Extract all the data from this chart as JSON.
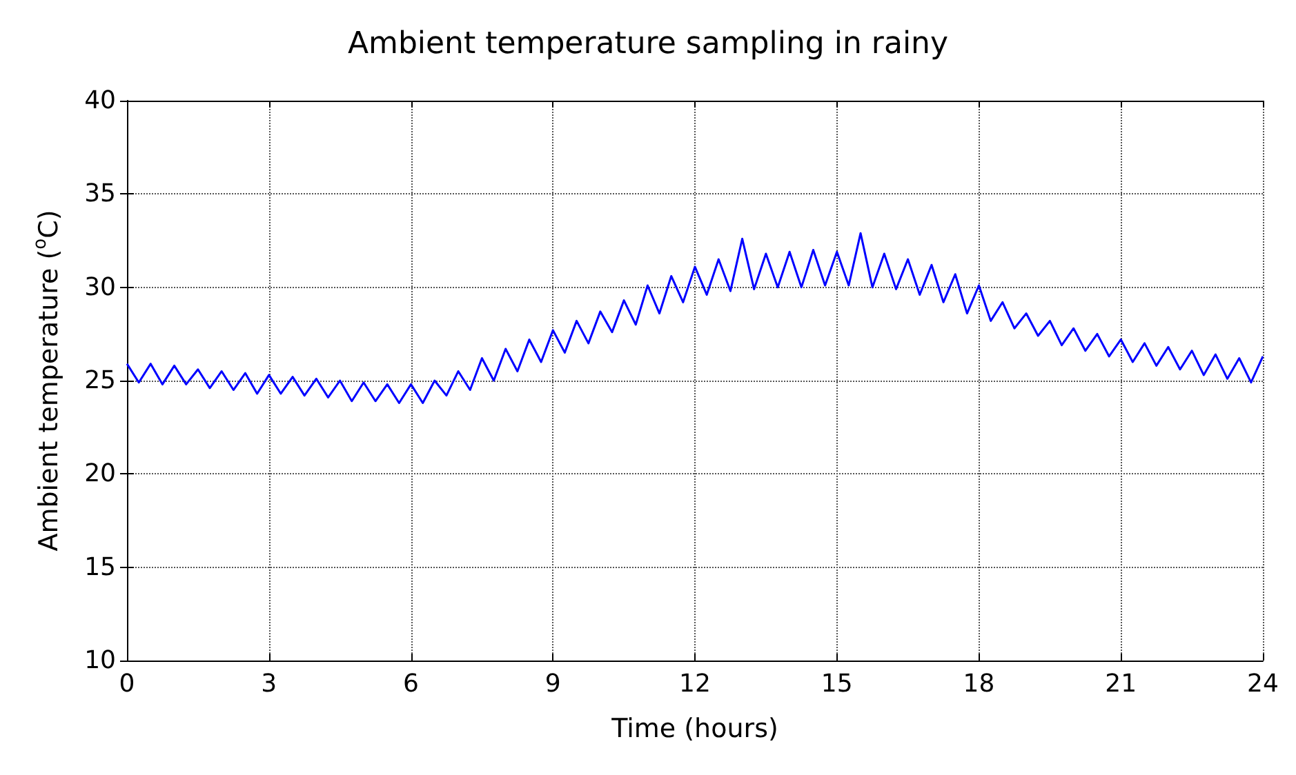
{
  "chart_data": {
    "type": "line",
    "title": "Ambient temperature sampling in rainy",
    "xlabel": "Time (hours)",
    "ylabel": "Ambient temperature ($^{o}$C)",
    "x": [
      0,
      0.25,
      0.5,
      0.75,
      1,
      1.25,
      1.5,
      1.75,
      2,
      2.25,
      2.5,
      2.75,
      3,
      3.25,
      3.5,
      3.75,
      4,
      4.25,
      4.5,
      4.75,
      5,
      5.25,
      5.5,
      5.75,
      6,
      6.25,
      6.5,
      6.75,
      7,
      7.25,
      7.5,
      7.75,
      8,
      8.25,
      8.5,
      8.75,
      9,
      9.25,
      9.5,
      9.75,
      10,
      10.25,
      10.5,
      10.75,
      11,
      11.25,
      11.5,
      11.75,
      12,
      12.25,
      12.5,
      12.75,
      13,
      13.25,
      13.5,
      13.75,
      14,
      14.25,
      14.5,
      14.75,
      15,
      15.25,
      15.5,
      15.75,
      16,
      16.25,
      16.5,
      16.75,
      17,
      17.25,
      17.5,
      17.75,
      18,
      18.25,
      18.5,
      18.75,
      19,
      19.25,
      19.5,
      19.75,
      20,
      20.25,
      20.5,
      20.75,
      21,
      21.25,
      21.5,
      21.75,
      22,
      22.25,
      22.5,
      22.75,
      23,
      23.25,
      23.5,
      23.75,
      24
    ],
    "series": [
      {
        "color": "#0000ff",
        "values": [
          25.9,
          24.9,
          25.9,
          24.8,
          25.8,
          24.8,
          25.6,
          24.6,
          25.5,
          24.5,
          25.4,
          24.3,
          25.3,
          24.3,
          25.2,
          24.2,
          25.1,
          24.1,
          25.0,
          23.9,
          24.9,
          23.9,
          24.8,
          23.8,
          24.8,
          23.8,
          25.0,
          24.2,
          25.5,
          24.5,
          26.2,
          25.0,
          26.7,
          25.5,
          27.2,
          26.0,
          27.7,
          26.5,
          28.2,
          27.0,
          28.7,
          27.6,
          29.3,
          28.0,
          30.1,
          28.6,
          30.6,
          29.2,
          31.1,
          29.6,
          31.5,
          29.8,
          32.6,
          29.9,
          31.8,
          30.0,
          31.9,
          30.0,
          32.0,
          30.1,
          31.9,
          30.1,
          32.9,
          30.0,
          31.8,
          29.9,
          31.5,
          29.6,
          31.2,
          29.2,
          30.7,
          28.6,
          30.1,
          28.2,
          29.2,
          27.8,
          28.6,
          27.4,
          28.2,
          26.9,
          27.8,
          26.6,
          27.5,
          26.3,
          27.2,
          26.0,
          27.0,
          25.8,
          26.8,
          25.6,
          26.6,
          25.3,
          26.4,
          25.1,
          26.2,
          24.9,
          26.3
        ]
      }
    ],
    "xlim": [
      0,
      24
    ],
    "xticks": [
      0,
      3,
      6,
      9,
      12,
      15,
      18,
      21,
      24
    ],
    "ylim": [
      10,
      40
    ],
    "yticks": [
      10,
      15,
      20,
      25,
      30,
      35,
      40
    ],
    "grid": true,
    "marker": "none",
    "line_style": "solid"
  }
}
